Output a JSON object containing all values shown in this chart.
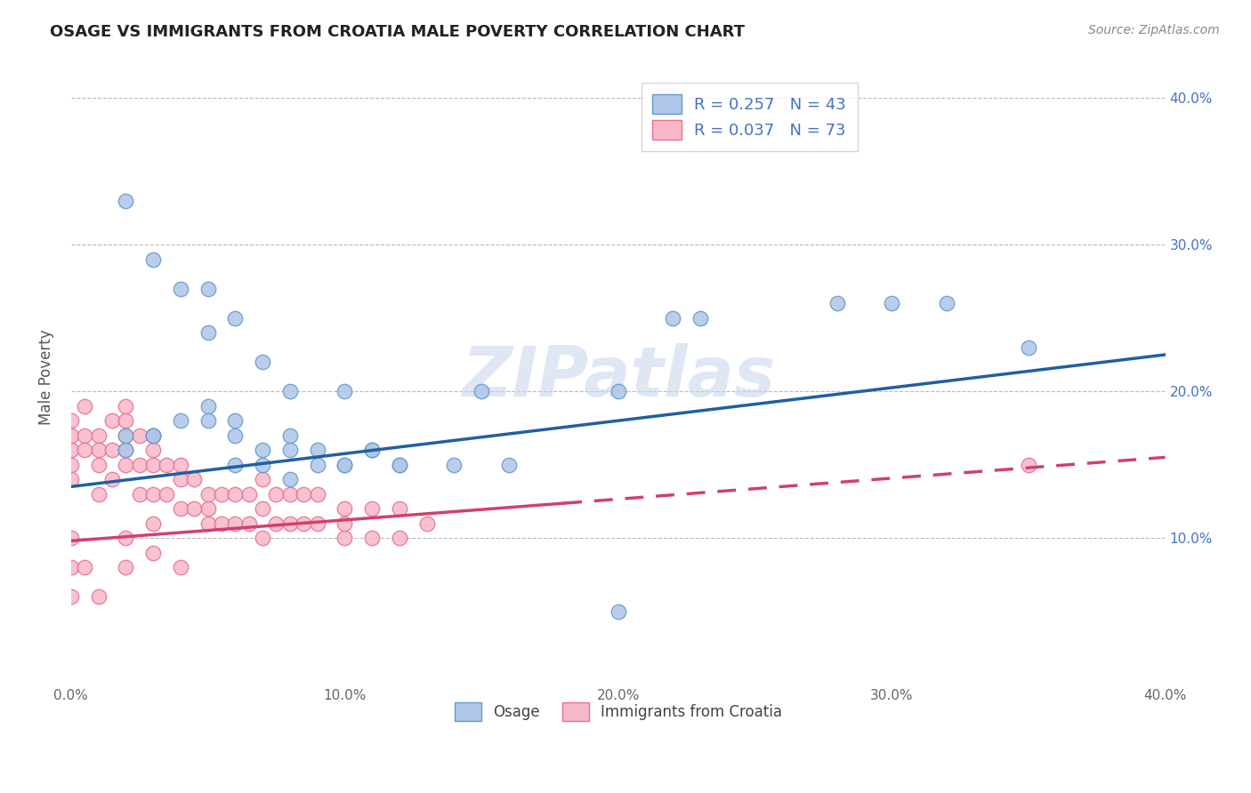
{
  "title": "OSAGE VS IMMIGRANTS FROM CROATIA MALE POVERTY CORRELATION CHART",
  "source": "Source: ZipAtlas.com",
  "ylabel": "Male Poverty",
  "xlim": [
    0.0,
    0.4
  ],
  "ylim": [
    0.0,
    0.42
  ],
  "xtick_labels": [
    "0.0%",
    "10.0%",
    "20.0%",
    "30.0%",
    "40.0%"
  ],
  "xtick_vals": [
    0.0,
    0.1,
    0.2,
    0.3,
    0.4
  ],
  "ytick_labels": [
    "10.0%",
    "20.0%",
    "30.0%",
    "40.0%"
  ],
  "ytick_vals": [
    0.1,
    0.2,
    0.3,
    0.4
  ],
  "legend_labels": [
    "Osage",
    "Immigrants from Croatia"
  ],
  "legend_R": [
    "R = 0.257",
    "R = 0.037"
  ],
  "legend_N": [
    "N = 43",
    "N = 73"
  ],
  "blue_fill": "#aec6e8",
  "blue_edge": "#6699cc",
  "pink_fill": "#f9b8c8",
  "pink_edge": "#e87090",
  "blue_line_color": "#2060a0",
  "pink_line_color": "#d04070",
  "watermark": "ZIPatlas",
  "background_color": "#ffffff",
  "grid_color": "#bbbbbb",
  "osage_x": [
    0.02,
    0.03,
    0.05,
    0.06,
    0.07,
    0.08,
    0.02,
    0.03,
    0.04,
    0.05,
    0.06,
    0.07,
    0.08,
    0.09,
    0.1,
    0.11,
    0.12,
    0.02,
    0.03,
    0.05,
    0.06,
    0.07,
    0.08,
    0.09,
    0.1,
    0.11,
    0.15,
    0.16,
    0.2,
    0.22,
    0.23,
    0.28,
    0.3,
    0.35,
    0.04,
    0.05,
    0.06,
    0.08,
    0.1,
    0.12,
    0.14,
    0.2,
    0.32
  ],
  "osage_y": [
    0.33,
    0.29,
    0.27,
    0.25,
    0.22,
    0.2,
    0.17,
    0.17,
    0.18,
    0.19,
    0.18,
    0.16,
    0.17,
    0.16,
    0.15,
    0.16,
    0.15,
    0.16,
    0.17,
    0.18,
    0.17,
    0.15,
    0.14,
    0.15,
    0.2,
    0.16,
    0.2,
    0.15,
    0.2,
    0.25,
    0.25,
    0.26,
    0.26,
    0.23,
    0.27,
    0.24,
    0.15,
    0.16,
    0.15,
    0.15,
    0.15,
    0.05,
    0.26
  ],
  "croatia_x": [
    0.0,
    0.0,
    0.0,
    0.0,
    0.0,
    0.005,
    0.005,
    0.005,
    0.01,
    0.01,
    0.01,
    0.01,
    0.015,
    0.015,
    0.015,
    0.02,
    0.02,
    0.02,
    0.02,
    0.02,
    0.025,
    0.025,
    0.025,
    0.03,
    0.03,
    0.03,
    0.03,
    0.03,
    0.035,
    0.035,
    0.04,
    0.04,
    0.04,
    0.045,
    0.045,
    0.05,
    0.05,
    0.05,
    0.055,
    0.055,
    0.06,
    0.06,
    0.065,
    0.065,
    0.07,
    0.07,
    0.07,
    0.075,
    0.075,
    0.08,
    0.08,
    0.085,
    0.085,
    0.09,
    0.09,
    0.1,
    0.1,
    0.1,
    0.11,
    0.11,
    0.12,
    0.12,
    0.13,
    0.0,
    0.0,
    0.0,
    0.005,
    0.01,
    0.02,
    0.03,
    0.04,
    0.02,
    0.35
  ],
  "croatia_y": [
    0.17,
    0.16,
    0.15,
    0.18,
    0.14,
    0.17,
    0.16,
    0.19,
    0.17,
    0.16,
    0.15,
    0.13,
    0.18,
    0.16,
    0.14,
    0.19,
    0.17,
    0.16,
    0.15,
    0.18,
    0.17,
    0.15,
    0.13,
    0.17,
    0.16,
    0.15,
    0.13,
    0.11,
    0.15,
    0.13,
    0.15,
    0.14,
    0.12,
    0.14,
    0.12,
    0.13,
    0.12,
    0.11,
    0.13,
    0.11,
    0.13,
    0.11,
    0.13,
    0.11,
    0.14,
    0.12,
    0.1,
    0.13,
    0.11,
    0.13,
    0.11,
    0.13,
    0.11,
    0.13,
    0.11,
    0.12,
    0.1,
    0.11,
    0.12,
    0.1,
    0.12,
    0.1,
    0.11,
    0.1,
    0.08,
    0.06,
    0.08,
    0.06,
    0.1,
    0.09,
    0.08,
    0.08,
    0.15
  ]
}
